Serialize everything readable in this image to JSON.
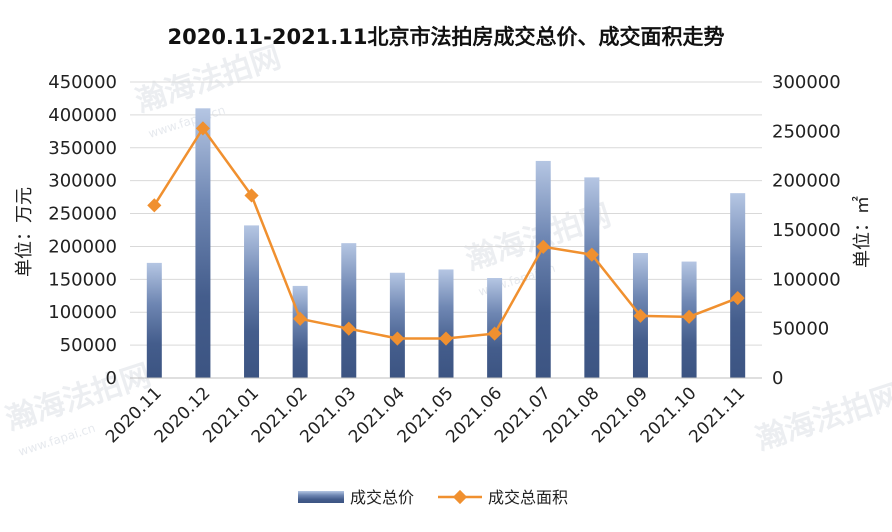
{
  "chart_data": {
    "type": "bar",
    "title": "2020.11-2021.11北京市法拍房成交总价、成交面积走势",
    "categories": [
      "2020.11",
      "2020.12",
      "2021.01",
      "2021.02",
      "2021.03",
      "2021.04",
      "2021.05",
      "2021.06",
      "2021.07",
      "2021.08",
      "2021.09",
      "2021.10",
      "2021.11"
    ],
    "series": [
      {
        "name": "成交总价",
        "type": "bar",
        "axis": "left",
        "color": "#4a6594",
        "values": [
          175000,
          410000,
          232000,
          140000,
          205000,
          160000,
          165000,
          152000,
          330000,
          305000,
          190000,
          177000,
          281000
        ]
      },
      {
        "name": "成交总面积",
        "type": "line",
        "axis": "right",
        "color": "#f0902f",
        "values": [
          175000,
          253000,
          185000,
          60000,
          50000,
          40000,
          40000,
          45000,
          133000,
          125000,
          63000,
          62000,
          81000
        ]
      }
    ],
    "left_axis": {
      "label": "单位：万元",
      "ylim": [
        0,
        450000
      ],
      "ticks": [
        "0",
        "50000",
        "100000",
        "150000",
        "200000",
        "250000",
        "300000",
        "350000",
        "400000",
        "450000"
      ]
    },
    "right_axis": {
      "label": "单位：㎡",
      "ylim": [
        0,
        300000
      ],
      "ticks": [
        "0",
        "50000",
        "100000",
        "150000",
        "200000",
        "250000",
        "300000"
      ]
    },
    "grid": true,
    "legend": "bottom-center",
    "watermark": [
      "瀚海法拍网",
      "www.fapai.cn"
    ]
  }
}
